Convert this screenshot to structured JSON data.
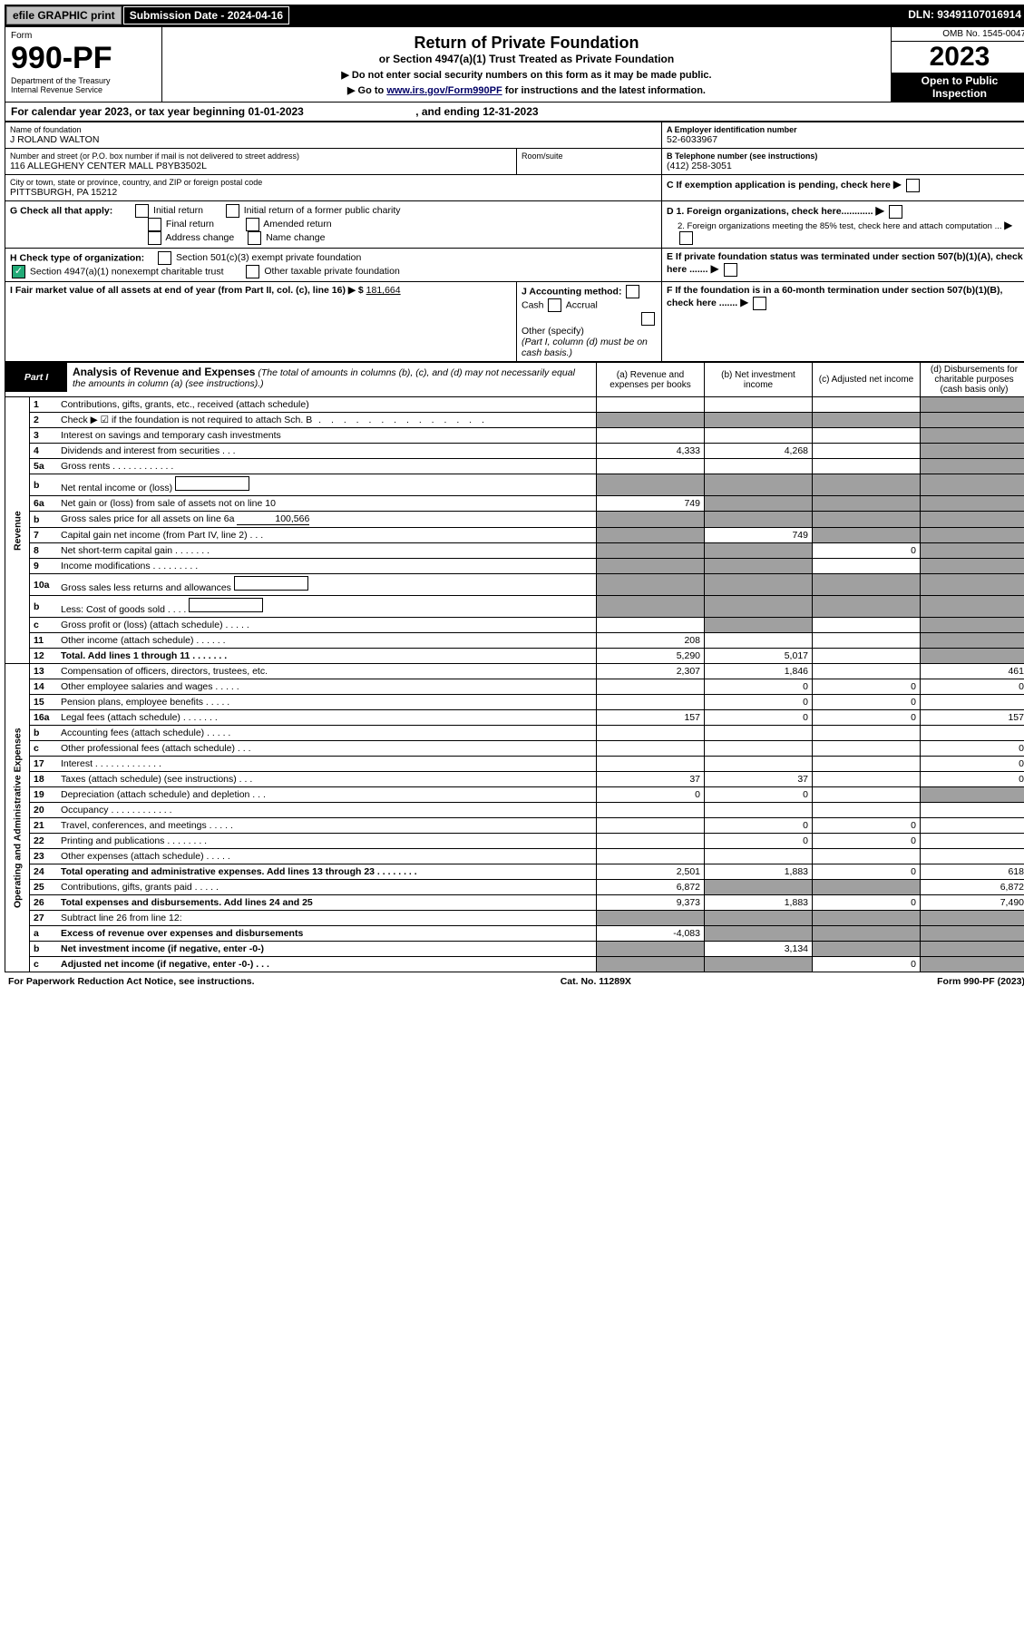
{
  "topbar": {
    "efile": "efile GRAPHIC print",
    "subdate_label": "Submission Date - ",
    "subdate": "2024-04-16",
    "dln_label": "DLN: ",
    "dln": "93491107016914"
  },
  "header": {
    "form_small": "Form",
    "form_num": "990-PF",
    "dept1": "Department of the Treasury",
    "dept2": "Internal Revenue Service",
    "title": "Return of Private Foundation",
    "subtitle": "or Section 4947(a)(1) Trust Treated as Private Foundation",
    "warn1": "▶ Do not enter social security numbers on this form as it may be made public.",
    "warn2a": "▶ Go to ",
    "warn2link": "www.irs.gov/Form990PF",
    "warn2b": " for instructions and the latest information.",
    "omb": "OMB No. 1545-0047",
    "year": "2023",
    "insp1": "Open to Public",
    "insp2": "Inspection"
  },
  "calyear": {
    "prefix": "For calendar year 2023, or tax year beginning ",
    "begin": "01-01-2023",
    "mid": " , and ending ",
    "end": "12-31-2023"
  },
  "name": {
    "label": "Name of foundation",
    "value": "J ROLAND WALTON"
  },
  "addr": {
    "label": "Number and street (or P.O. box number if mail is not delivered to street address)",
    "value": "116 ALLEGHENY CENTER MALL P8YB3502L",
    "room": "Room/suite"
  },
  "city": {
    "label": "City or town, state or province, country, and ZIP or foreign postal code",
    "value": "PITTSBURGH, PA  15212"
  },
  "boxA": {
    "label": "A Employer identification number",
    "value": "52-6033967"
  },
  "boxB": {
    "label": "B Telephone number (see instructions)",
    "value": "(412) 258-3051"
  },
  "boxC": {
    "label": "C If exemption application is pending, check here"
  },
  "boxD": {
    "d1": "D 1. Foreign organizations, check here............",
    "d2": "2. Foreign organizations meeting the 85% test, check here and attach computation ..."
  },
  "boxE": {
    "label": "E If private foundation status was terminated under section 507(b)(1)(A), check here ......."
  },
  "boxF": {
    "label": "F If the foundation is in a 60-month termination under section 507(b)(1)(B), check here ......."
  },
  "boxG": {
    "label": "G Check all that apply:",
    "opts": [
      "Initial return",
      "Initial return of a former public charity",
      "Final return",
      "Amended return",
      "Address change",
      "Name change"
    ]
  },
  "boxH": {
    "label": "H Check type of organization:",
    "opt1": "Section 501(c)(3) exempt private foundation",
    "opt2": "Section 4947(a)(1) nonexempt charitable trust",
    "opt3": "Other taxable private foundation"
  },
  "boxI": {
    "label": "I Fair market value of all assets at end of year (from Part II, col. (c), line 16)  ▶ $",
    "value": "181,664"
  },
  "boxJ": {
    "label": "J Accounting method:",
    "cash": "Cash",
    "accrual": "Accrual",
    "other": "Other (specify)",
    "note": "(Part I, column (d) must be on cash basis.)"
  },
  "part1": {
    "title": "Part I",
    "heading": "Analysis of Revenue and Expenses",
    "note": "(The total of amounts in columns (b), (c), and (d) may not necessarily equal the amounts in column (a) (see instructions).)",
    "cols": {
      "a": "(a)  Revenue and expenses per books",
      "b": "(b)  Net investment income",
      "c": "(c)  Adjusted net income",
      "d": "(d)  Disbursements for charitable purposes (cash basis only)"
    }
  },
  "sections": {
    "revenue": "Revenue",
    "expenses": "Operating and Administrative Expenses"
  },
  "rows": [
    {
      "n": "1",
      "label": "Contributions, gifts, grants, etc., received (attach schedule)",
      "a": "",
      "b": "",
      "c": "",
      "d": "",
      "dgrey": true
    },
    {
      "n": "2",
      "label": "Check ▶ ☑ if the foundation is not required to attach Sch. B",
      "suffix": "  .  .  .  .  .  .  .  .  .  .  .  .  .  .",
      "allgrey": true
    },
    {
      "n": "3",
      "label": "Interest on savings and temporary cash investments",
      "a": "",
      "b": "",
      "c": "",
      "d": "",
      "dgrey": true
    },
    {
      "n": "4",
      "label": "Dividends and interest from securities  .  .  .",
      "a": "4,333",
      "b": "4,268",
      "c": "",
      "d": "",
      "dgrey": true
    },
    {
      "n": "5a",
      "label": "Gross rents  .  .  .  .  .  .  .  .  .  .  .  .",
      "a": "",
      "b": "",
      "c": "",
      "d": "",
      "dgrey": true
    },
    {
      "n": "b",
      "label": "Net rental income or (loss)",
      "allgrey": true,
      "inlineBox": true
    },
    {
      "n": "6a",
      "label": "Net gain or (loss) from sale of assets not on line 10",
      "a": "749",
      "b": "",
      "c": "",
      "d": "",
      "bgrey": true,
      "cgrey": true,
      "dgrey": true
    },
    {
      "n": "b",
      "label": "Gross sales price for all assets on line 6a",
      "inlineVal": "100,566",
      "allgrey": true
    },
    {
      "n": "7",
      "label": "Capital gain net income (from Part IV, line 2)  .  .  .",
      "a": "",
      "b": "749",
      "c": "",
      "d": "",
      "agrey": true,
      "cgrey": true,
      "dgrey": true
    },
    {
      "n": "8",
      "label": "Net short-term capital gain  .  .  .  .  .  .  .",
      "a": "",
      "b": "",
      "c": "0",
      "d": "",
      "agrey": true,
      "bgrey": true,
      "dgrey": true
    },
    {
      "n": "9",
      "label": "Income modifications  .  .  .  .  .  .  .  .  .",
      "a": "",
      "b": "",
      "c": "",
      "d": "",
      "agrey": true,
      "bgrey": true,
      "dgrey": true
    },
    {
      "n": "10a",
      "label": "Gross sales less returns and allowances",
      "allgrey": true,
      "inlineBox": true
    },
    {
      "n": "b",
      "label": "Less: Cost of goods sold  .  .  .  .",
      "allgrey": true,
      "inlineBox": true
    },
    {
      "n": "c",
      "label": "Gross profit or (loss) (attach schedule)  .  .  .  .  .",
      "a": "",
      "b": "",
      "c": "",
      "d": "",
      "bgrey": true,
      "dgrey": true
    },
    {
      "n": "11",
      "label": "Other income (attach schedule)  .  .  .  .  .  .",
      "a": "208",
      "b": "",
      "c": "",
      "d": "",
      "dgrey": true
    },
    {
      "n": "12",
      "label": "Total. Add lines 1 through 11  .  .  .  .  .  .  .",
      "bold": true,
      "a": "5,290",
      "b": "5,017",
      "c": "",
      "d": "",
      "dgrey": true
    }
  ],
  "exp_rows": [
    {
      "n": "13",
      "label": "Compensation of officers, directors, trustees, etc.",
      "a": "2,307",
      "b": "1,846",
      "c": "",
      "d": "461"
    },
    {
      "n": "14",
      "label": "Other employee salaries and wages  .  .  .  .  .",
      "a": "",
      "b": "0",
      "c": "0",
      "d": "0"
    },
    {
      "n": "15",
      "label": "Pension plans, employee benefits  .  .  .  .  .",
      "a": "",
      "b": "0",
      "c": "0",
      "d": ""
    },
    {
      "n": "16a",
      "label": "Legal fees (attach schedule)  .  .  .  .  .  .  .",
      "a": "157",
      "b": "0",
      "c": "0",
      "d": "157"
    },
    {
      "n": "b",
      "label": "Accounting fees (attach schedule)  .  .  .  .  .",
      "a": "",
      "b": "",
      "c": "",
      "d": ""
    },
    {
      "n": "c",
      "label": "Other professional fees (attach schedule)  .  .  .",
      "a": "",
      "b": "",
      "c": "",
      "d": "0"
    },
    {
      "n": "17",
      "label": "Interest  .  .  .  .  .  .  .  .  .  .  .  .  .",
      "a": "",
      "b": "",
      "c": "",
      "d": "0"
    },
    {
      "n": "18",
      "label": "Taxes (attach schedule) (see instructions)  .  .  .",
      "a": "37",
      "b": "37",
      "c": "",
      "d": "0"
    },
    {
      "n": "19",
      "label": "Depreciation (attach schedule) and depletion  .  .  .",
      "a": "0",
      "b": "0",
      "c": "",
      "d": "",
      "dgrey": true
    },
    {
      "n": "20",
      "label": "Occupancy  .  .  .  .  .  .  .  .  .  .  .  .",
      "a": "",
      "b": "",
      "c": "",
      "d": ""
    },
    {
      "n": "21",
      "label": "Travel, conferences, and meetings  .  .  .  .  .",
      "a": "",
      "b": "0",
      "c": "0",
      "d": ""
    },
    {
      "n": "22",
      "label": "Printing and publications  .  .  .  .  .  .  .  .",
      "a": "",
      "b": "0",
      "c": "0",
      "d": ""
    },
    {
      "n": "23",
      "label": "Other expenses (attach schedule)  .  .  .  .  .",
      "a": "",
      "b": "",
      "c": "",
      "d": ""
    },
    {
      "n": "24",
      "label": "Total operating and administrative expenses. Add lines 13 through 23  .  .  .  .  .  .  .  .",
      "bold": true,
      "a": "2,501",
      "b": "1,883",
      "c": "0",
      "d": "618"
    },
    {
      "n": "25",
      "label": "Contributions, gifts, grants paid  .  .  .  .  .",
      "a": "6,872",
      "b": "",
      "c": "",
      "d": "6,872",
      "bgrey": true,
      "cgrey": true
    },
    {
      "n": "26",
      "label": "Total expenses and disbursements. Add lines 24 and 25",
      "bold": true,
      "a": "9,373",
      "b": "1,883",
      "c": "0",
      "d": "7,490"
    },
    {
      "n": "27",
      "label": "Subtract line 26 from line 12:",
      "a": "",
      "b": "",
      "c": "",
      "d": "",
      "agrey": true,
      "bgrey": true,
      "cgrey": true,
      "dgrey": true
    },
    {
      "n": "a",
      "label": "Excess of revenue over expenses and disbursements",
      "bold": true,
      "a": "-4,083",
      "b": "",
      "c": "",
      "d": "",
      "bgrey": true,
      "cgrey": true,
      "dgrey": true
    },
    {
      "n": "b",
      "label": "Net investment income (if negative, enter -0-)",
      "bold": true,
      "a": "",
      "b": "3,134",
      "c": "",
      "d": "",
      "agrey": true,
      "cgrey": true,
      "dgrey": true
    },
    {
      "n": "c",
      "label": "Adjusted net income (if negative, enter -0-)  .  .  .",
      "bold": true,
      "a": "",
      "b": "",
      "c": "0",
      "d": "",
      "agrey": true,
      "bgrey": true,
      "dgrey": true
    }
  ],
  "footer": {
    "left": "For Paperwork Reduction Act Notice, see instructions.",
    "mid": "Cat. No. 11289X",
    "right": "Form 990-PF (2023)"
  }
}
